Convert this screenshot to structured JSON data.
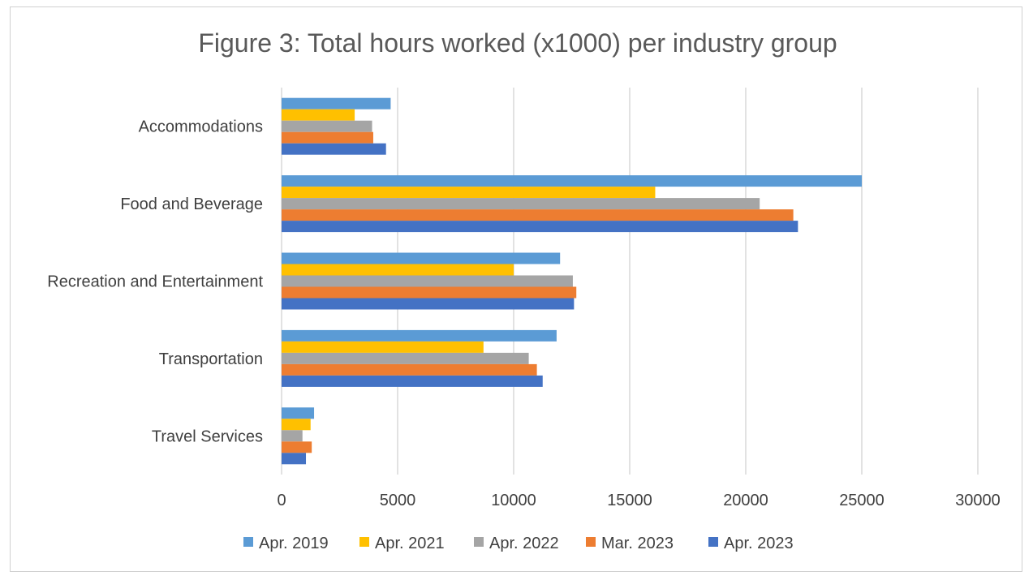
{
  "chart_data": {
    "type": "bar",
    "orientation": "horizontal",
    "title": "Figure 3: Total hours worked (x1000) per industry group",
    "xlabel": "",
    "ylabel": "",
    "xlim": [
      0,
      30000
    ],
    "ticks": [
      "0",
      "5000",
      "10000",
      "15000",
      "20000",
      "25000",
      "30000"
    ],
    "grid": true,
    "legend_position": "bottom",
    "categories": [
      "Accommodations",
      "Food and Beverage",
      "Recreation and Entertainment",
      "Transportation",
      "Travel Services"
    ],
    "series": [
      {
        "name": "Apr. 2019",
        "color": "#5b9bd5",
        "values": [
          4700,
          25000,
          12000,
          11850,
          1400
        ]
      },
      {
        "name": "Apr. 2021",
        "color": "#ffc000",
        "values": [
          3150,
          16100,
          10000,
          8700,
          1250
        ]
      },
      {
        "name": "Apr. 2022",
        "color": "#a5a5a5",
        "values": [
          3900,
          20600,
          12550,
          10650,
          900
        ]
      },
      {
        "name": "Mar. 2023",
        "color": "#ed7d31",
        "values": [
          3950,
          22050,
          12700,
          11000,
          1300
        ]
      },
      {
        "name": "Apr. 2023",
        "color": "#4472c4",
        "values": [
          4500,
          22250,
          12600,
          11250,
          1050
        ]
      }
    ]
  }
}
